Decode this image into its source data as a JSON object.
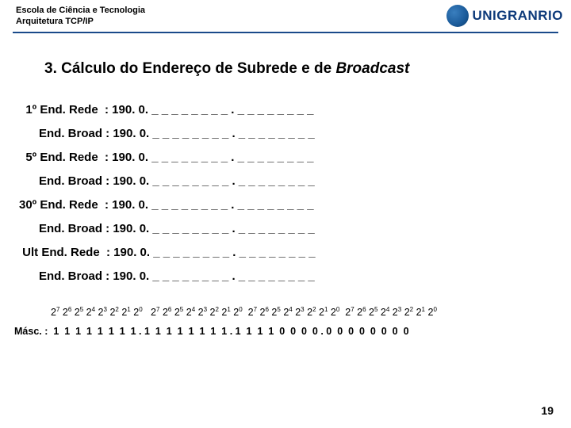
{
  "header": {
    "line1": "Escola de Ciência e Tecnologia",
    "line2": "Arquitetura TCP/IP",
    "brand": "UNIGRANRIO"
  },
  "title": {
    "pre": "3. Cálculo do Endereço de Subrede e de ",
    "italic": "Broadcast"
  },
  "rows": [
    "  1º End. Rede  : 190. 0. _ _ _ _ _ _ _ _ . _ _ _ _ _ _ _ _",
    "      End. Broad : 190. 0. _ _ _ _ _ _ _ _ . _ _ _ _ _ _ _ _",
    "  5º End. Rede  : 190. 0. _ _ _ _ _ _ _ _ . _ _ _ _ _ _ _ _",
    "      End. Broad : 190. 0. _ _ _ _ _ _ _ _ . _ _ _ _ _ _ _ _",
    "30º End. Rede  : 190. 0. _ _ _ _ _ _ _ _ . _ _ _ _ _ _ _ _",
    "      End. Broad : 190. 0. _ _ _ _ _ _ _ _ . _ _ _ _ _ _ _ _",
    " Ult End. Rede  : 190. 0. _ _ _ _ _ _ _ _ . _ _ _ _ _ _ _ _",
    "      End. Broad : 190. 0. _ _ _ _ _ _ _ _ . _ _ _ _ _ _ _ _"
  ],
  "mask": {
    "label": "Másc. :",
    "bits": "  1  1  1  1  1  1  1  1 . 1  1  1  1  1  1  1  1 . 1  1  1  1  0  0  0  0 . 0  0  0  0  0  0  0  0"
  },
  "page": "19",
  "colors": {
    "rule": "#1a4a8a",
    "brand": "#0d3a7a"
  }
}
